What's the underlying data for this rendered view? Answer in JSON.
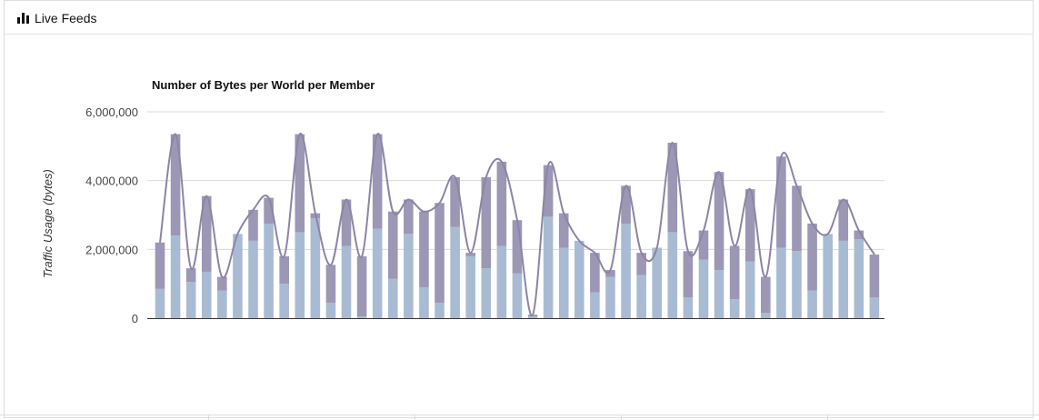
{
  "panel": {
    "title": "Live Feeds",
    "icon": "bar-chart-icon"
  },
  "chart_data": {
    "type": "bar",
    "stacked": true,
    "title": "Number of Bytes per World per Member",
    "xlabel": "",
    "ylabel": "Traffic Usage (bytes)",
    "ylim": [
      0,
      6000000
    ],
    "yticks": [
      0,
      2000000,
      4000000,
      6000000
    ],
    "ytick_labels": [
      "0",
      "2,000,000",
      "4,000,000",
      "6,000,000"
    ],
    "grid": true,
    "legend": "none",
    "colors": {
      "lower": "#a9bbd3",
      "upper": "#9b97b5",
      "line": "#8e84a6",
      "axis": "#333333",
      "grid": "#d9d9d9"
    },
    "series": [
      {
        "values": [
          850000,
          2400000,
          1050000,
          1350000,
          800000,
          2450000,
          2250000,
          2750000,
          1000000,
          2500000,
          2900000,
          450000,
          2100000,
          50000,
          2600000,
          1150000,
          2450000,
          900000,
          450000,
          2650000,
          1800000,
          1450000,
          2100000,
          1300000,
          50000,
          2950000,
          2050000,
          2250000,
          750000,
          1200000,
          2750000,
          1250000,
          2050000,
          2500000,
          600000,
          1700000,
          1400000,
          550000,
          1650000,
          150000,
          2050000,
          1950000,
          800000,
          2450000,
          2250000,
          2300000,
          600000
        ]
      },
      {
        "values": [
          1350000,
          2950000,
          400000,
          2200000,
          400000,
          0,
          900000,
          750000,
          800000,
          2850000,
          150000,
          1100000,
          1350000,
          1750000,
          2750000,
          1950000,
          1000000,
          2200000,
          2900000,
          1450000,
          100000,
          2650000,
          2450000,
          1550000,
          50000,
          1500000,
          1000000,
          0,
          1150000,
          200000,
          1100000,
          650000,
          0,
          2600000,
          1350000,
          850000,
          2850000,
          1550000,
          2100000,
          1050000,
          2650000,
          1900000,
          1950000,
          0,
          1200000,
          250000,
          1250000
        ]
      }
    ],
    "totals_line": [
      2200000,
      5350000,
      1450000,
      3550000,
      1200000,
      2450000,
      3150000,
      3500000,
      1800000,
      5350000,
      3050000,
      1550000,
      3450000,
      1800000,
      5350000,
      3100000,
      3450000,
      3100000,
      3350000,
      4100000,
      1900000,
      4100000,
      4550000,
      2850000,
      100000,
      4450000,
      3050000,
      2250000,
      1900000,
      1400000,
      3850000,
      1900000,
      2050000,
      5100000,
      1950000,
      2550000,
      4250000,
      2100000,
      3750000,
      1200000,
      4700000,
      3850000,
      2750000,
      2450000,
      3450000,
      2550000,
      1850000
    ]
  }
}
